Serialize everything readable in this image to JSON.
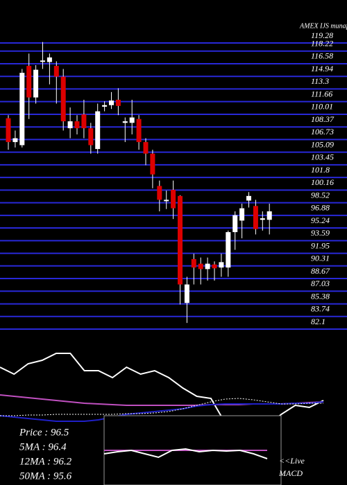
{
  "chart_data": [
    {
      "type": "candlestick",
      "title": "AMEX  IJS munafa.pro",
      "open": [
        108.6,
        105.5,
        105.1,
        115.4,
        111.3,
        116.1,
        115.9,
        115.4,
        114.0,
        107.3,
        108.2,
        109.1,
        107.3,
        104.6,
        110.1,
        110.3,
        111.0,
        108.0,
        108.0,
        108.5,
        105.5,
        104.0,
        99.8,
        97.9,
        99.3,
        98.5,
        84.6,
        90.3,
        89.7,
        89.0,
        89.6,
        89.2,
        89.2,
        93.8,
        95.3,
        97.9,
        97.2,
        95.4,
        95.4
      ],
      "high": [
        109.0,
        107.0,
        115.0,
        117.0,
        115.5,
        118.5,
        117.0,
        116.0,
        115.0,
        110.0,
        109.0,
        111.0,
        108.0,
        110.5,
        110.8,
        112.0,
        112.5,
        108.7,
        111.0,
        109.0,
        106.0,
        104.5,
        100.5,
        99.2,
        100.5,
        98.6,
        88.0,
        91.0,
        90.5,
        90.5,
        90.0,
        91.0,
        94.0,
        96.5,
        97.5,
        99.0,
        98.0,
        96.5,
        97.5
      ],
      "low": [
        104.5,
        104.8,
        104.8,
        108.5,
        110.5,
        115.0,
        113.0,
        110.5,
        107.0,
        106.0,
        106.5,
        106.0,
        104.0,
        104.0,
        109.5,
        109.8,
        109.0,
        105.5,
        106.5,
        104.5,
        102.5,
        99.5,
        96.5,
        96.8,
        95.5,
        84.4,
        82.0,
        87.0,
        87.0,
        87.5,
        87.5,
        88.0,
        88.0,
        91.5,
        93.0,
        97.0,
        93.5,
        94.0,
        93.5
      ],
      "close": [
        105.5,
        106.0,
        114.5,
        111.3,
        114.9,
        116.1,
        116.5,
        114.0,
        108.2,
        108.2,
        107.3,
        107.3,
        105.1,
        109.5,
        110.3,
        110.9,
        110.2,
        108.2,
        108.7,
        105.5,
        104.0,
        101.3,
        98.0,
        98.0,
        96.9,
        87.0,
        87.0,
        89.2,
        89.0,
        89.7,
        89.1,
        89.9,
        93.8,
        96.0,
        96.9,
        98.5,
        94.2,
        95.6,
        96.5
      ],
      "up_color": "#ffffff",
      "down_color": "#dd0000",
      "grid": true,
      "grid_color": "#2828d8",
      "ylim": [
        82.1,
        119.28
      ],
      "yticks": [
        119.28,
        118.22,
        116.58,
        114.94,
        113.3,
        111.66,
        110.01,
        108.37,
        106.73,
        105.09,
        103.45,
        101.8,
        100.16,
        98.52,
        96.88,
        95.24,
        93.59,
        91.95,
        90.31,
        88.67,
        87.03,
        85.38,
        83.74,
        82.1
      ]
    },
    {
      "type": "line",
      "ylim": [
        0,
        100
      ],
      "annotations": [
        "Price : 96.5",
        "5MA : 96.4",
        "12MA : 96.2",
        "50MA : 95.6"
      ],
      "series": [
        {
          "color": "#ffffff",
          "values": [
            85,
            80,
            87.5,
            90,
            95,
            95,
            82.5,
            82.5,
            77.5,
            85,
            80,
            82.5,
            77.5,
            70,
            64,
            62.5,
            45,
            40,
            40,
            42.5,
            51,
            57.5,
            56,
            61
          ]
        },
        {
          "color": "#c050c0",
          "values": [
            65,
            64,
            63,
            62,
            61,
            60,
            59,
            58.5,
            58,
            57.5,
            57.5,
            57.5,
            57.5,
            57.5,
            57.5,
            58,
            58,
            58,
            58.5,
            58.5,
            58.5,
            59,
            59.5,
            60
          ]
        },
        {
          "color": "#2020c8",
          "values": [
            50,
            49,
            48,
            47,
            46,
            46,
            46,
            47,
            49,
            51,
            52,
            53,
            54,
            55,
            57,
            58,
            58.5,
            58.5,
            58.5,
            58.5,
            58.5,
            59,
            59,
            60
          ]
        },
        {
          "color": "#ffffff",
          "dash": true,
          "values": [
            50,
            50,
            50.5,
            50.5,
            51,
            51,
            51,
            51,
            51,
            51.5,
            51.5,
            52,
            53,
            55,
            57.5,
            60,
            62,
            62.5,
            61.5,
            60,
            58.5,
            58.5,
            59,
            59
          ]
        }
      ]
    },
    {
      "type": "line",
      "ylim": [
        0,
        100
      ],
      "annotations": [
        "<<Live",
        "MACD"
      ],
      "series": [
        {
          "color": "#c050c0",
          "values": [
            50,
            50,
            50,
            50,
            50,
            50,
            50,
            50,
            50,
            50,
            50,
            50
          ]
        },
        {
          "color": "#ffffff",
          "values": [
            45,
            48,
            50,
            45,
            40,
            50,
            52,
            48,
            50,
            49,
            50,
            45,
            38
          ]
        }
      ]
    }
  ]
}
